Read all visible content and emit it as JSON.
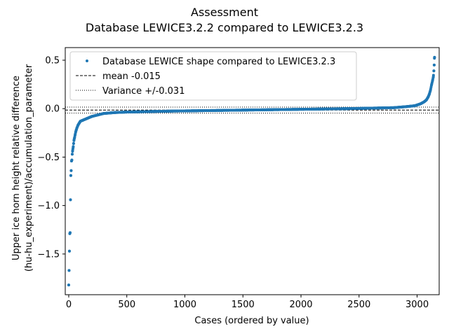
{
  "chart_data": {
    "type": "scatter",
    "title": "Assessment",
    "subtitle": "Database LEWICE3.2.2 compared to LEWICE3.2.3",
    "xlabel": "Cases (ordered by value)",
    "ylabel_line1": "Upper ice horn height relative difference",
    "ylabel_line2": "(hu-hu_experiment)/accumulation_parameter",
    "xlim": [
      -30,
      3190
    ],
    "ylim": [
      -1.92,
      0.63
    ],
    "x_ticks": [
      0,
      500,
      1000,
      1500,
      2000,
      2500,
      3000
    ],
    "x_tick_labels": [
      "0",
      "500",
      "1000",
      "1500",
      "2000",
      "2500",
      "3000"
    ],
    "y_ticks": [
      0.5,
      0.0,
      -0.5,
      -1.0,
      -1.5
    ],
    "y_tick_labels": [
      "0.5",
      "0.0",
      "−0.5",
      "−1.0",
      "−1.5"
    ],
    "n_points": 3150,
    "series": [
      {
        "name": "Database LEWICE shape compared to LEWICE3.2.3",
        "color": "#1f77b4",
        "marker": "dot",
        "sorted_curve": [
          [
            0,
            -1.82
          ],
          [
            3,
            -1.67
          ],
          [
            6,
            -1.47
          ],
          [
            9,
            -1.29
          ],
          [
            12,
            -1.28
          ],
          [
            15,
            -0.94
          ],
          [
            18,
            -0.69
          ],
          [
            21,
            -0.64
          ],
          [
            24,
            -0.54
          ],
          [
            27,
            -0.53
          ],
          [
            30,
            -0.47
          ],
          [
            34,
            -0.43
          ],
          [
            38,
            -0.4
          ],
          [
            42,
            -0.36
          ],
          [
            46,
            -0.32
          ],
          [
            50,
            -0.3
          ],
          [
            55,
            -0.27
          ],
          [
            60,
            -0.24
          ],
          [
            65,
            -0.22
          ],
          [
            70,
            -0.2
          ],
          [
            80,
            -0.17
          ],
          [
            90,
            -0.15
          ],
          [
            100,
            -0.13
          ],
          [
            120,
            -0.12
          ],
          [
            140,
            -0.11
          ],
          [
            160,
            -0.1
          ],
          [
            200,
            -0.08
          ],
          [
            250,
            -0.065
          ],
          [
            300,
            -0.05
          ],
          [
            400,
            -0.04
          ],
          [
            500,
            -0.035
          ],
          [
            700,
            -0.03
          ],
          [
            900,
            -0.025
          ],
          [
            1200,
            -0.02
          ],
          [
            1500,
            -0.015
          ],
          [
            1800,
            -0.01
          ],
          [
            2100,
            -0.005
          ],
          [
            2400,
            0.0
          ],
          [
            2600,
            0.005
          ],
          [
            2800,
            0.01
          ],
          [
            2900,
            0.02
          ],
          [
            2980,
            0.03
          ],
          [
            3030,
            0.05
          ],
          [
            3060,
            0.07
          ],
          [
            3080,
            0.09
          ],
          [
            3095,
            0.12
          ],
          [
            3105,
            0.15
          ],
          [
            3115,
            0.19
          ],
          [
            3125,
            0.25
          ],
          [
            3133,
            0.29
          ],
          [
            3140,
            0.33
          ],
          [
            3144,
            0.39
          ],
          [
            3147,
            0.45
          ],
          [
            3149,
            0.52
          ],
          [
            3150,
            0.53
          ]
        ]
      }
    ],
    "reference_lines": [
      {
        "name": "mean -0.015",
        "y": -0.015,
        "style": "dashed",
        "color": "#000000"
      },
      {
        "name": "Variance +/-0.031",
        "y": [
          0.016,
          -0.046
        ],
        "style": "dotted",
        "color": "#000000"
      }
    ],
    "legend": {
      "placement": "top-left",
      "entries": [
        "Database LEWICE shape compared to LEWICE3.2.3",
        "mean -0.015",
        "Variance +/-0.031"
      ]
    },
    "grid": false
  }
}
